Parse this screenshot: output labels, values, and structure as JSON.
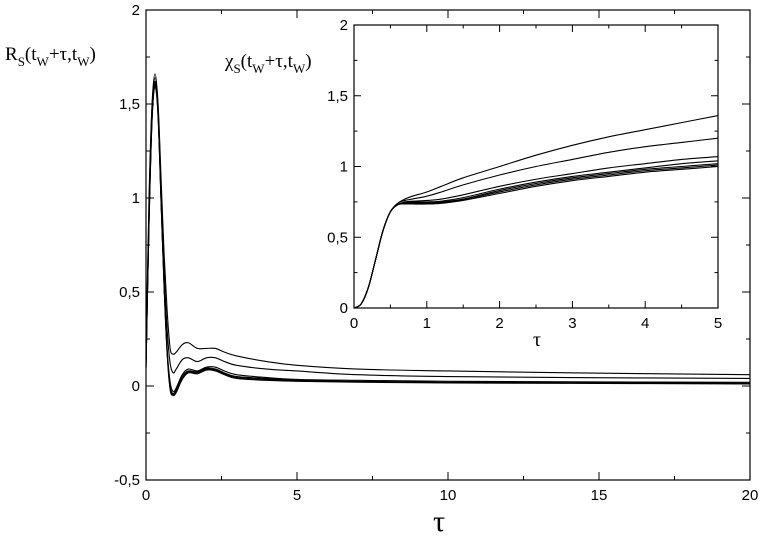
{
  "chart_data": [
    {
      "type": "line",
      "ylabel_parts": {
        "R": "R",
        "S": "S",
        "open": "(t",
        "W": "W",
        "mid": "+τ,t",
        "W2": "W",
        "close": ")"
      },
      "xlabel": "τ",
      "xlim": [
        0,
        20
      ],
      "ylim": [
        -0.5,
        2
      ],
      "xticks": [
        0,
        5,
        10,
        15,
        20
      ],
      "xtick_labels": [
        "0",
        "5",
        "10",
        "15",
        "20"
      ],
      "yticks": [
        -0.5,
        0,
        0.5,
        1,
        1.5,
        2
      ],
      "ytick_labels": [
        "-0,5",
        "0",
        "0,5",
        "1",
        "1,5",
        "2"
      ],
      "series": [
        {
          "x": [
            0,
            0.1,
            0.2,
            0.3,
            0.4,
            0.5,
            0.6,
            0.7,
            0.8,
            0.9,
            1.0,
            1.2,
            1.4,
            1.7,
            2.0,
            2.3,
            2.6,
            3,
            4,
            5,
            7,
            10,
            14,
            20
          ],
          "y": [
            0.15,
            1.0,
            1.5,
            1.66,
            1.5,
            1.1,
            0.7,
            0.4,
            0.2,
            0.17,
            0.18,
            0.22,
            0.23,
            0.2,
            0.2,
            0.2,
            0.18,
            0.16,
            0.13,
            0.11,
            0.09,
            0.08,
            0.07,
            0.06
          ]
        },
        {
          "x": [
            0,
            0.1,
            0.2,
            0.3,
            0.4,
            0.5,
            0.6,
            0.7,
            0.8,
            0.9,
            1.0,
            1.2,
            1.4,
            1.7,
            2.0,
            2.3,
            2.6,
            3,
            4,
            5,
            7,
            10,
            14,
            20
          ],
          "y": [
            0.12,
            0.95,
            1.48,
            1.64,
            1.48,
            1.05,
            0.62,
            0.3,
            0.12,
            0.07,
            0.09,
            0.14,
            0.15,
            0.13,
            0.15,
            0.15,
            0.13,
            0.11,
            0.09,
            0.08,
            0.06,
            0.05,
            0.045,
            0.04
          ]
        },
        {
          "x": [
            0,
            0.1,
            0.2,
            0.3,
            0.4,
            0.5,
            0.6,
            0.7,
            0.8,
            0.9,
            1.0,
            1.2,
            1.4,
            1.7,
            2.0,
            2.3,
            2.6,
            3,
            4,
            5,
            7,
            10,
            14,
            20
          ],
          "y": [
            0.1,
            0.9,
            1.45,
            1.62,
            1.46,
            1.0,
            0.55,
            0.2,
            0.02,
            -0.03,
            -0.01,
            0.06,
            0.09,
            0.08,
            0.1,
            0.1,
            0.08,
            0.06,
            0.045,
            0.035,
            0.03,
            0.025,
            0.022,
            0.02
          ]
        },
        {
          "x": [
            0,
            0.1,
            0.2,
            0.3,
            0.4,
            0.5,
            0.6,
            0.7,
            0.8,
            0.9,
            1.0,
            1.2,
            1.4,
            1.7,
            2.0,
            2.3,
            2.6,
            3,
            4,
            5,
            7,
            10,
            14,
            20
          ],
          "y": [
            0.1,
            0.88,
            1.43,
            1.61,
            1.45,
            0.99,
            0.54,
            0.19,
            0.0,
            -0.04,
            -0.02,
            0.05,
            0.08,
            0.075,
            0.095,
            0.09,
            0.07,
            0.05,
            0.04,
            0.03,
            0.025,
            0.02,
            0.018,
            0.015
          ]
        },
        {
          "x": [
            0,
            0.1,
            0.2,
            0.3,
            0.4,
            0.5,
            0.6,
            0.7,
            0.8,
            0.9,
            1.0,
            1.2,
            1.4,
            1.7,
            2.0,
            2.3,
            2.6,
            3,
            4,
            5,
            7,
            10,
            14,
            20
          ],
          "y": [
            0.1,
            0.87,
            1.42,
            1.6,
            1.44,
            0.98,
            0.53,
            0.18,
            -0.01,
            -0.045,
            -0.03,
            0.04,
            0.075,
            0.07,
            0.09,
            0.085,
            0.065,
            0.045,
            0.035,
            0.028,
            0.022,
            0.018,
            0.016,
            0.013
          ]
        },
        {
          "x": [
            0,
            0.1,
            0.2,
            0.3,
            0.4,
            0.5,
            0.6,
            0.7,
            0.8,
            0.9,
            1.0,
            1.2,
            1.4,
            1.7,
            2.0,
            2.3,
            2.6,
            3,
            4,
            5,
            7,
            10,
            14,
            20
          ],
          "y": [
            0.1,
            0.86,
            1.41,
            1.59,
            1.43,
            0.97,
            0.52,
            0.17,
            -0.02,
            -0.05,
            -0.035,
            0.035,
            0.07,
            0.065,
            0.085,
            0.08,
            0.06,
            0.04,
            0.03,
            0.025,
            0.02,
            0.016,
            0.014,
            0.011
          ]
        }
      ]
    },
    {
      "type": "line",
      "ylabel_parts": {
        "chi": "χ",
        "S": "S",
        "open": "(t",
        "W": "W",
        "mid": "+τ,t",
        "W2": "W",
        "close": ")"
      },
      "xlabel": "τ",
      "xlim": [
        0,
        5
      ],
      "ylim": [
        0,
        2
      ],
      "xticks": [
        0,
        1,
        2,
        3,
        4,
        5
      ],
      "xtick_labels": [
        "0",
        "1",
        "2",
        "3",
        "4",
        "5"
      ],
      "yticks": [
        0,
        0.5,
        1,
        1.5,
        2
      ],
      "ytick_labels": [
        "0",
        "0,5",
        "1",
        "1,5",
        "2"
      ],
      "series": [
        {
          "x": [
            0,
            0.1,
            0.2,
            0.3,
            0.4,
            0.5,
            0.6,
            0.7,
            0.8,
            1.0,
            1.2,
            1.5,
            2,
            2.5,
            3,
            3.5,
            4,
            4.5,
            5
          ],
          "y": [
            0,
            0.03,
            0.15,
            0.35,
            0.55,
            0.68,
            0.74,
            0.77,
            0.79,
            0.82,
            0.86,
            0.92,
            1.0,
            1.08,
            1.15,
            1.21,
            1.26,
            1.31,
            1.36
          ]
        },
        {
          "x": [
            0,
            0.1,
            0.2,
            0.3,
            0.4,
            0.5,
            0.6,
            0.7,
            0.8,
            1.0,
            1.2,
            1.5,
            2,
            2.5,
            3,
            3.5,
            4,
            4.5,
            5
          ],
          "y": [
            0,
            0.03,
            0.15,
            0.35,
            0.55,
            0.68,
            0.74,
            0.76,
            0.77,
            0.79,
            0.82,
            0.87,
            0.94,
            1.0,
            1.05,
            1.1,
            1.14,
            1.17,
            1.2
          ]
        },
        {
          "x": [
            0,
            0.1,
            0.2,
            0.3,
            0.4,
            0.5,
            0.6,
            0.7,
            0.8,
            1.0,
            1.2,
            1.5,
            2,
            2.5,
            3,
            3.5,
            4,
            4.5,
            5
          ],
          "y": [
            0,
            0.03,
            0.15,
            0.35,
            0.55,
            0.68,
            0.73,
            0.75,
            0.755,
            0.76,
            0.77,
            0.8,
            0.86,
            0.91,
            0.95,
            0.99,
            1.02,
            1.05,
            1.07
          ]
        },
        {
          "x": [
            0,
            0.1,
            0.2,
            0.3,
            0.4,
            0.5,
            0.6,
            0.7,
            0.8,
            1.0,
            1.2,
            1.5,
            2,
            2.5,
            3,
            3.5,
            4,
            4.5,
            5
          ],
          "y": [
            0,
            0.03,
            0.15,
            0.35,
            0.55,
            0.68,
            0.73,
            0.745,
            0.75,
            0.75,
            0.755,
            0.78,
            0.84,
            0.89,
            0.93,
            0.96,
            0.99,
            1.02,
            1.04
          ]
        },
        {
          "x": [
            0,
            0.1,
            0.2,
            0.3,
            0.4,
            0.5,
            0.6,
            0.7,
            0.8,
            1.0,
            1.2,
            1.5,
            2,
            2.5,
            3,
            3.5,
            4,
            4.5,
            5
          ],
          "y": [
            0,
            0.03,
            0.15,
            0.35,
            0.55,
            0.68,
            0.73,
            0.74,
            0.745,
            0.745,
            0.75,
            0.77,
            0.83,
            0.88,
            0.92,
            0.95,
            0.98,
            1.0,
            1.02
          ]
        },
        {
          "x": [
            0,
            0.1,
            0.2,
            0.3,
            0.4,
            0.5,
            0.6,
            0.7,
            0.8,
            1.0,
            1.2,
            1.5,
            2,
            2.5,
            3,
            3.5,
            4,
            4.5,
            5
          ],
          "y": [
            0,
            0.03,
            0.15,
            0.35,
            0.55,
            0.68,
            0.73,
            0.74,
            0.74,
            0.74,
            0.745,
            0.765,
            0.82,
            0.87,
            0.91,
            0.94,
            0.97,
            0.99,
            1.01
          ]
        },
        {
          "x": [
            0,
            0.1,
            0.2,
            0.3,
            0.4,
            0.5,
            0.6,
            0.7,
            0.8,
            1.0,
            1.2,
            1.5,
            2,
            2.5,
            3,
            3.5,
            4,
            4.5,
            5
          ],
          "y": [
            0,
            0.03,
            0.15,
            0.35,
            0.55,
            0.68,
            0.73,
            0.735,
            0.735,
            0.735,
            0.74,
            0.76,
            0.81,
            0.86,
            0.9,
            0.93,
            0.96,
            0.98,
            1.0
          ]
        }
      ]
    }
  ]
}
